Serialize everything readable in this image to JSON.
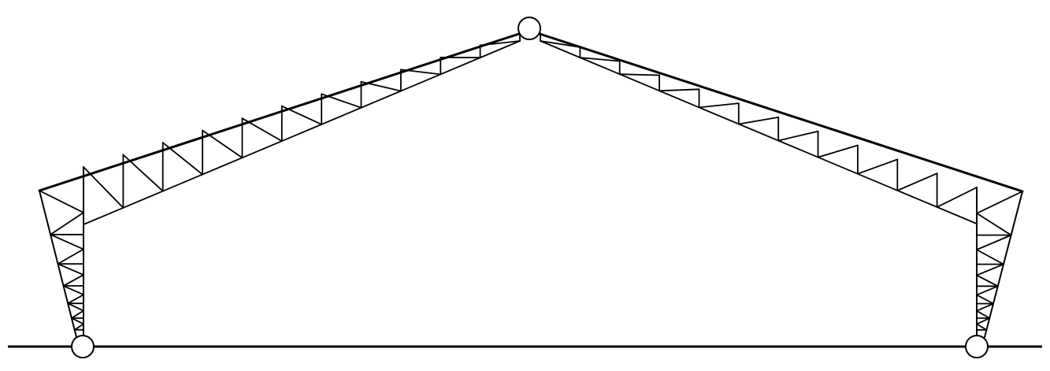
{
  "diagram": {
    "type": "three-hinged truss portal frame",
    "hinges": [
      "left-support-hinge",
      "crown-hinge",
      "right-support-hinge"
    ],
    "colors": {
      "stroke": "#000000",
      "background": "#ffffff"
    }
  }
}
